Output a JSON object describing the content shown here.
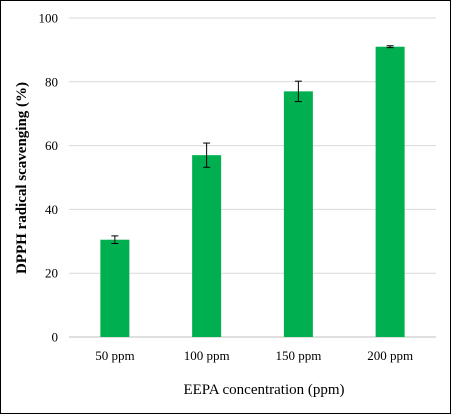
{
  "chart_data": {
    "type": "bar",
    "categories": [
      "50 ppm",
      "100 ppm",
      "150 ppm",
      "200 ppm"
    ],
    "values": [
      30.5,
      57.0,
      77.0,
      91.0
    ],
    "errors": [
      1.2,
      3.8,
      3.2,
      0.3
    ],
    "title": "",
    "xlabel": "EEPA concentration (ppm)",
    "ylabel": "DPPH radical scavenging (%)",
    "ylim": [
      0,
      100
    ],
    "yticks": [
      0,
      20,
      40,
      60,
      80,
      100
    ],
    "grid": true,
    "bar_color": "#00b050",
    "grid_color": "#d9d9d9"
  }
}
